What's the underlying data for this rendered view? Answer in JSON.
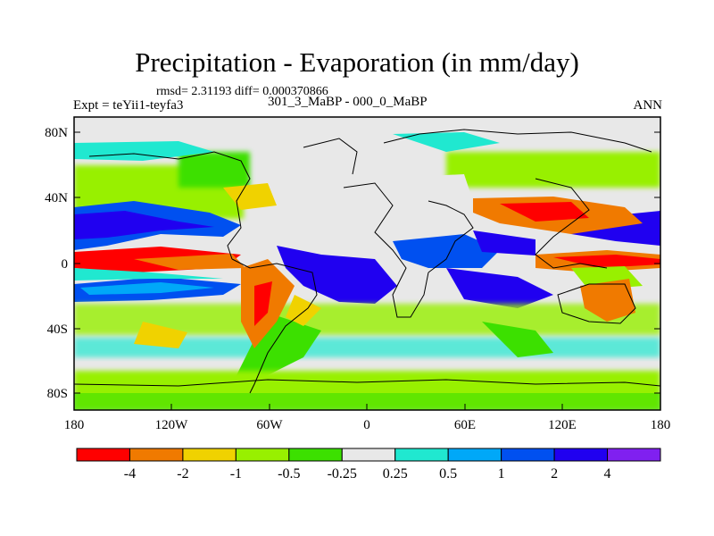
{
  "title": "Precipitation - Evaporation (in mm/day)",
  "stats": "rmsd= 2.31193 diff= 0.000370866",
  "experiment": "Expt = teYii1-teyfa3",
  "subtitle": "301_3_MaBP - 000_0_MaBP",
  "season": "ANN",
  "latitude_labels": [
    "80N",
    "40N",
    "0",
    "40S",
    "80S"
  ],
  "longitude_labels": [
    "180",
    "120W",
    "60W",
    "0",
    "60E",
    "120E",
    "180"
  ],
  "colorbar": {
    "labels": [
      "-4",
      "-2",
      "-1",
      "-0.5",
      "-0.25",
      "0.25",
      "0.5",
      "1",
      "2",
      "4"
    ],
    "colors": [
      "#ff0000",
      "#f07a00",
      "#f0d200",
      "#98f000",
      "#3ce000",
      "#e8e8e8",
      "#20e8d0",
      "#00a8f8",
      "#0050f0",
      "#2000f0",
      "#8020f0"
    ]
  }
}
